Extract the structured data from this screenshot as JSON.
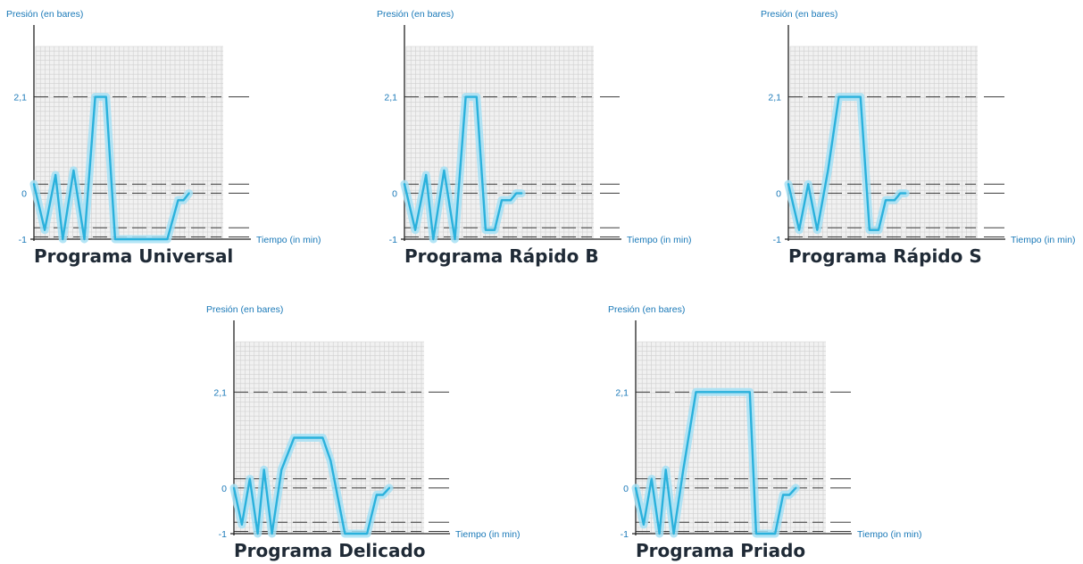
{
  "chart_data": [
    {
      "type": "line",
      "title": "Programa Universal",
      "ylabel": "Presión (en bares)",
      "xlabel": "Tiempo (in min)",
      "yticks": [
        {
          "label": "2,1",
          "value": 2.1
        },
        {
          "label": "0",
          "value": 0
        },
        {
          "label": "-1",
          "value": -1
        }
      ],
      "ylim": [
        -1,
        3.2
      ],
      "reference_lines": [
        2.1,
        0.2,
        0,
        -0.75,
        -0.95
      ],
      "x": [
        0,
        0.6,
        1.2,
        1.6,
        2.2,
        2.8,
        3.4,
        4.0,
        4.5,
        5.0,
        5.6,
        7.4,
        8.0,
        8.3,
        8.6
      ],
      "series": [
        {
          "values": [
            0.2,
            -0.8,
            0.4,
            -1.0,
            0.5,
            -1.0,
            2.1,
            2.1,
            -1.0,
            -1.0,
            -1.0,
            -1.0,
            -0.15,
            -0.15,
            0.0
          ]
        }
      ]
    },
    {
      "type": "line",
      "title": "Programa Rápido B",
      "ylabel": "Presión (en bares)",
      "xlabel": "Tiempo (in min)",
      "yticks": [
        {
          "label": "2,1",
          "value": 2.1
        },
        {
          "label": "0",
          "value": 0
        },
        {
          "label": "-1",
          "value": -1
        }
      ],
      "ylim": [
        -1,
        3.2
      ],
      "reference_lines": [
        2.1,
        0.2,
        0,
        -0.75,
        -0.95
      ],
      "x": [
        0,
        0.6,
        1.2,
        1.6,
        2.2,
        2.8,
        3.4,
        4.0,
        4.5,
        5.0,
        5.4,
        5.9,
        6.2,
        6.5
      ],
      "series": [
        {
          "values": [
            0.2,
            -0.8,
            0.4,
            -1.0,
            0.5,
            -1.0,
            2.1,
            2.1,
            -0.8,
            -0.8,
            -0.15,
            -0.15,
            0.0,
            0.0
          ]
        }
      ]
    },
    {
      "type": "line",
      "title": "Programa Rápido S",
      "ylabel": "Presión (en bares)",
      "xlabel": "Tiempo (in min)",
      "yticks": [
        {
          "label": "2,1",
          "value": 2.1
        },
        {
          "label": "0",
          "value": 0
        },
        {
          "label": "-1",
          "value": -1
        }
      ],
      "ylim": [
        -1,
        3.2
      ],
      "reference_lines": [
        2.1,
        0.2,
        0,
        -0.75,
        -0.95
      ],
      "x": [
        0,
        0.6,
        1.1,
        1.6,
        2.2,
        2.8,
        3.4,
        4.0,
        4.5,
        5.0,
        5.4,
        5.9,
        6.2,
        6.5
      ],
      "series": [
        {
          "values": [
            0.2,
            -0.8,
            0.2,
            -0.8,
            0.5,
            2.1,
            2.1,
            2.1,
            -0.8,
            -0.8,
            -0.15,
            -0.15,
            0.0,
            0.0
          ]
        }
      ]
    },
    {
      "type": "line",
      "title": "Programa Delicado",
      "ylabel": "Presión (en bares)",
      "xlabel": "Tiempo (in min)",
      "yticks": [
        {
          "label": "2,1",
          "value": 2.1
        },
        {
          "label": "0",
          "value": 0
        },
        {
          "label": "-1",
          "value": -1
        }
      ],
      "ylim": [
        -1,
        3.2
      ],
      "reference_lines": [
        2.1,
        0.2,
        0,
        -0.75,
        -0.95
      ],
      "x": [
        0,
        0.5,
        1.0,
        1.5,
        1.9,
        2.4,
        3.0,
        3.8,
        4.3,
        5.6,
        6.1,
        7.0,
        8.4,
        9.0,
        9.4,
        9.8
      ],
      "series": [
        {
          "values": [
            0.0,
            -0.8,
            0.2,
            -1.0,
            0.4,
            -1.0,
            0.4,
            1.1,
            1.1,
            1.1,
            0.6,
            -1.0,
            -1.0,
            -0.15,
            -0.15,
            0.0
          ]
        }
      ]
    },
    {
      "type": "line",
      "title": "Programa Priado",
      "ylabel": "Presión (en bares)",
      "xlabel": "Tiempo (in min)",
      "yticks": [
        {
          "label": "2,1",
          "value": 2.1
        },
        {
          "label": "0",
          "value": 0
        },
        {
          "label": "-1",
          "value": -1
        }
      ],
      "ylim": [
        -1,
        3.2
      ],
      "reference_lines": [
        2.1,
        0.2,
        0,
        -0.75,
        -0.95
      ],
      "x": [
        0,
        0.5,
        1.0,
        1.5,
        1.9,
        2.4,
        3.0,
        3.8,
        4.3,
        6.6,
        7.2,
        7.6,
        8.8,
        9.3,
        9.7,
        10.1
      ],
      "series": [
        {
          "values": [
            0.0,
            -0.8,
            0.2,
            -1.0,
            0.4,
            -1.0,
            0.4,
            2.1,
            2.1,
            2.1,
            2.1,
            -1.0,
            -1.0,
            -0.15,
            -0.15,
            0.0
          ]
        }
      ]
    }
  ]
}
